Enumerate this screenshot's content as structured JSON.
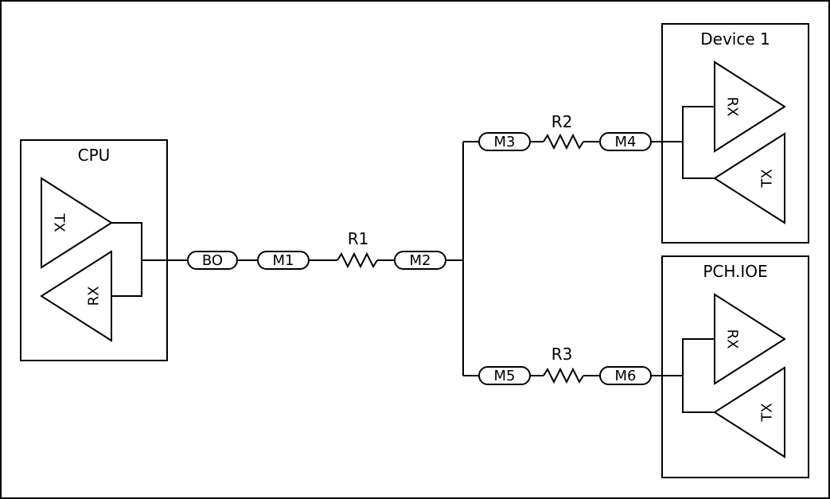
{
  "blocks": {
    "cpu": "CPU",
    "device1": "Device 1",
    "pch": "PCH.IOE"
  },
  "buffers": {
    "tx": "TX",
    "rx": "RX"
  },
  "segments": {
    "bo": "BO",
    "m1": "M1",
    "m2": "M2",
    "m3": "M3",
    "m4": "M4",
    "m5": "M5",
    "m6": "M6"
  },
  "resistors": {
    "r1": "R1",
    "r2": "R2",
    "r3": "R3"
  }
}
